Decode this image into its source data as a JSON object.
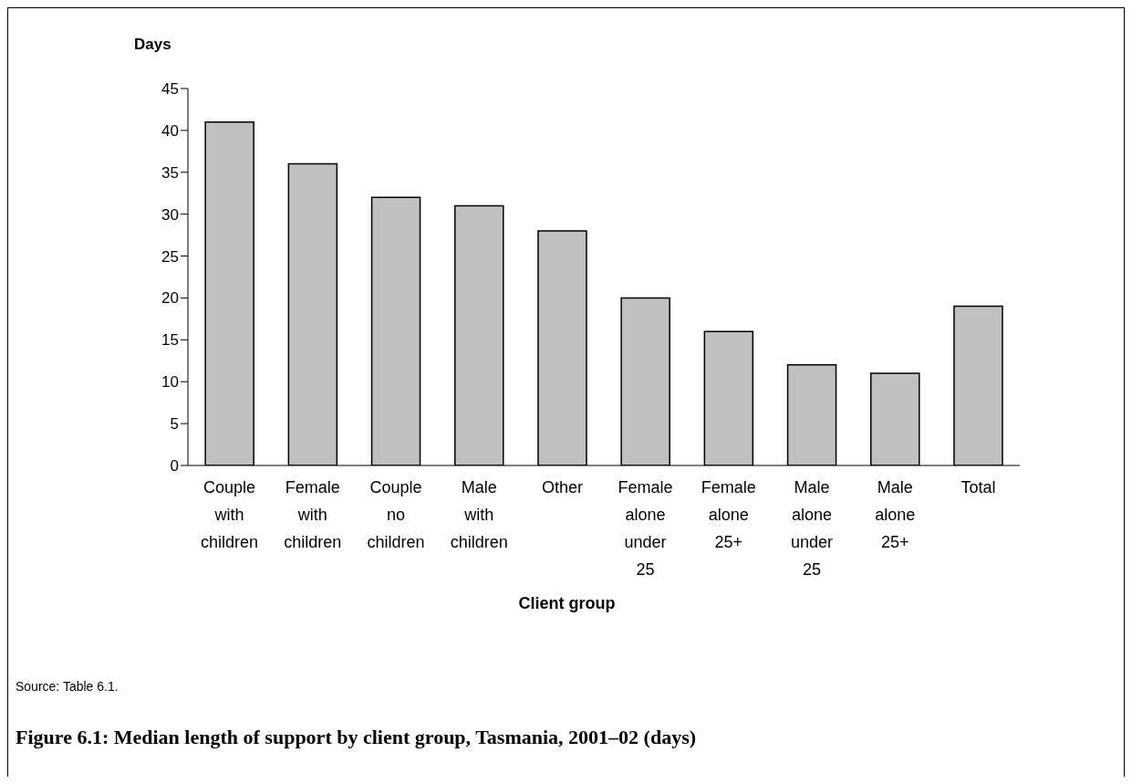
{
  "chart_data": {
    "type": "bar",
    "title": "Figure 6.1: Median length of support by client group, Tasmania, 2001–02 (days)",
    "xlabel": "Client group",
    "ylabel": "Days",
    "categories": [
      "Couple with children",
      "Female with children",
      "Couple no children",
      "Male with children",
      "Other",
      "Female alone under 25",
      "Female alone 25+",
      "Male alone under 25",
      "Male alone 25+",
      "Total"
    ],
    "values": [
      41,
      36,
      32,
      31,
      28,
      20,
      16,
      12,
      11,
      19
    ],
    "color": "#c0c0c0",
    "ylim": [
      0,
      45
    ],
    "yticks": [
      0,
      5,
      10,
      15,
      20,
      25,
      30,
      35,
      40,
      45
    ],
    "grid": false,
    "annotations": [
      "Source: Table 6.1."
    ]
  }
}
